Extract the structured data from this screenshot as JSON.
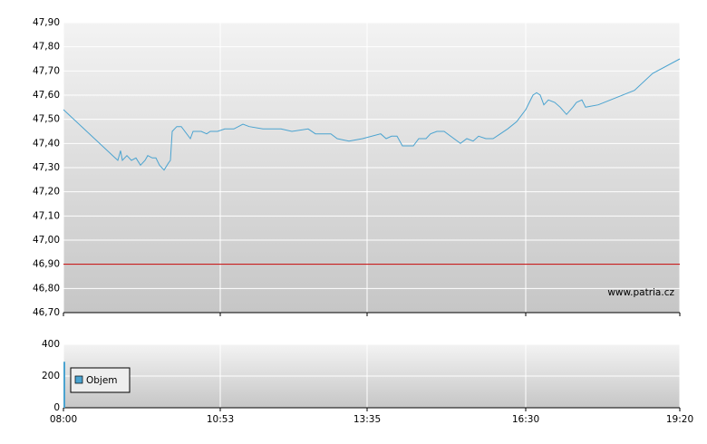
{
  "chart_data": [
    {
      "type": "line",
      "x": [
        480,
        540,
        543,
        545,
        550,
        555,
        560,
        565,
        570,
        573,
        578,
        582,
        586,
        591,
        596,
        598,
        600,
        605,
        610,
        620,
        623,
        632,
        638,
        642,
        650,
        658,
        668,
        678,
        685,
        700,
        720,
        732,
        750,
        758,
        775,
        782,
        795,
        810,
        830,
        836,
        842,
        848,
        854,
        866,
        872,
        880,
        885,
        892,
        900,
        918,
        925,
        932,
        938,
        946,
        954,
        962,
        970,
        980,
        990,
        998,
        1002,
        1006,
        1010,
        1015,
        1022,
        1028,
        1035,
        1042,
        1046,
        1052,
        1056,
        1070,
        1110,
        1130,
        1160
      ],
      "series": [
        {
          "color": "#4aa3d0",
          "values": [
            47.54,
            47.33,
            47.37,
            47.33,
            47.35,
            47.33,
            47.34,
            47.31,
            47.33,
            47.35,
            47.34,
            47.34,
            47.31,
            47.29,
            47.32,
            47.33,
            47.45,
            47.47,
            47.47,
            47.42,
            47.45,
            47.45,
            47.44,
            47.45,
            47.45,
            47.46,
            47.46,
            47.48,
            47.47,
            47.46,
            47.46,
            47.45,
            47.46,
            47.44,
            47.44,
            47.42,
            47.41,
            47.42,
            47.44,
            47.42,
            47.43,
            47.43,
            47.39,
            47.39,
            47.42,
            47.42,
            47.44,
            47.45,
            47.45,
            47.4,
            47.42,
            47.41,
            47.43,
            47.42,
            47.42,
            47.44,
            47.46,
            47.49,
            47.54,
            47.6,
            47.61,
            47.6,
            47.56,
            47.58,
            47.57,
            47.55,
            47.52,
            47.55,
            47.57,
            47.58,
            47.55,
            47.56,
            47.62,
            47.69,
            47.75
          ]
        }
      ],
      "reference_line": {
        "value": 46.9,
        "color": "#c00000"
      },
      "xlim": [
        480,
        1160
      ],
      "ylim": [
        46.7,
        47.9
      ],
      "yticks": [
        {
          "value": 46.7,
          "label": "46,70"
        },
        {
          "value": 46.8,
          "label": "46,80"
        },
        {
          "value": 46.9,
          "label": "46,90"
        },
        {
          "value": 47.0,
          "label": "47,00"
        },
        {
          "value": 47.1,
          "label": "47,10"
        },
        {
          "value": 47.2,
          "label": "47,20"
        },
        {
          "value": 47.3,
          "label": "47,30"
        },
        {
          "value": 47.4,
          "label": "47,40"
        },
        {
          "value": 47.5,
          "label": "47,50"
        },
        {
          "value": 47.6,
          "label": "47,60"
        },
        {
          "value": 47.7,
          "label": "47,70"
        },
        {
          "value": 47.8,
          "label": "47,80"
        },
        {
          "value": 47.9,
          "label": "47,90"
        }
      ],
      "grid": true,
      "watermark": "www.patria.cz"
    },
    {
      "type": "bar",
      "x": [
        480
      ],
      "series": [
        {
          "name": "Objem",
          "color": "#4aa3d0",
          "values": [
            290
          ]
        }
      ],
      "xlim": [
        480,
        1160
      ],
      "ylim": [
        0,
        400
      ],
      "yticks": [
        0,
        200,
        400
      ],
      "xticks": [
        {
          "value": 480,
          "label": "08:00"
        },
        {
          "value": 653,
          "label": "10:53"
        },
        {
          "value": 815,
          "label": "13:35"
        },
        {
          "value": 990,
          "label": "16:30"
        },
        {
          "value": 1160,
          "label": "19:20"
        }
      ],
      "grid": true,
      "legend": "upper-left"
    }
  ]
}
